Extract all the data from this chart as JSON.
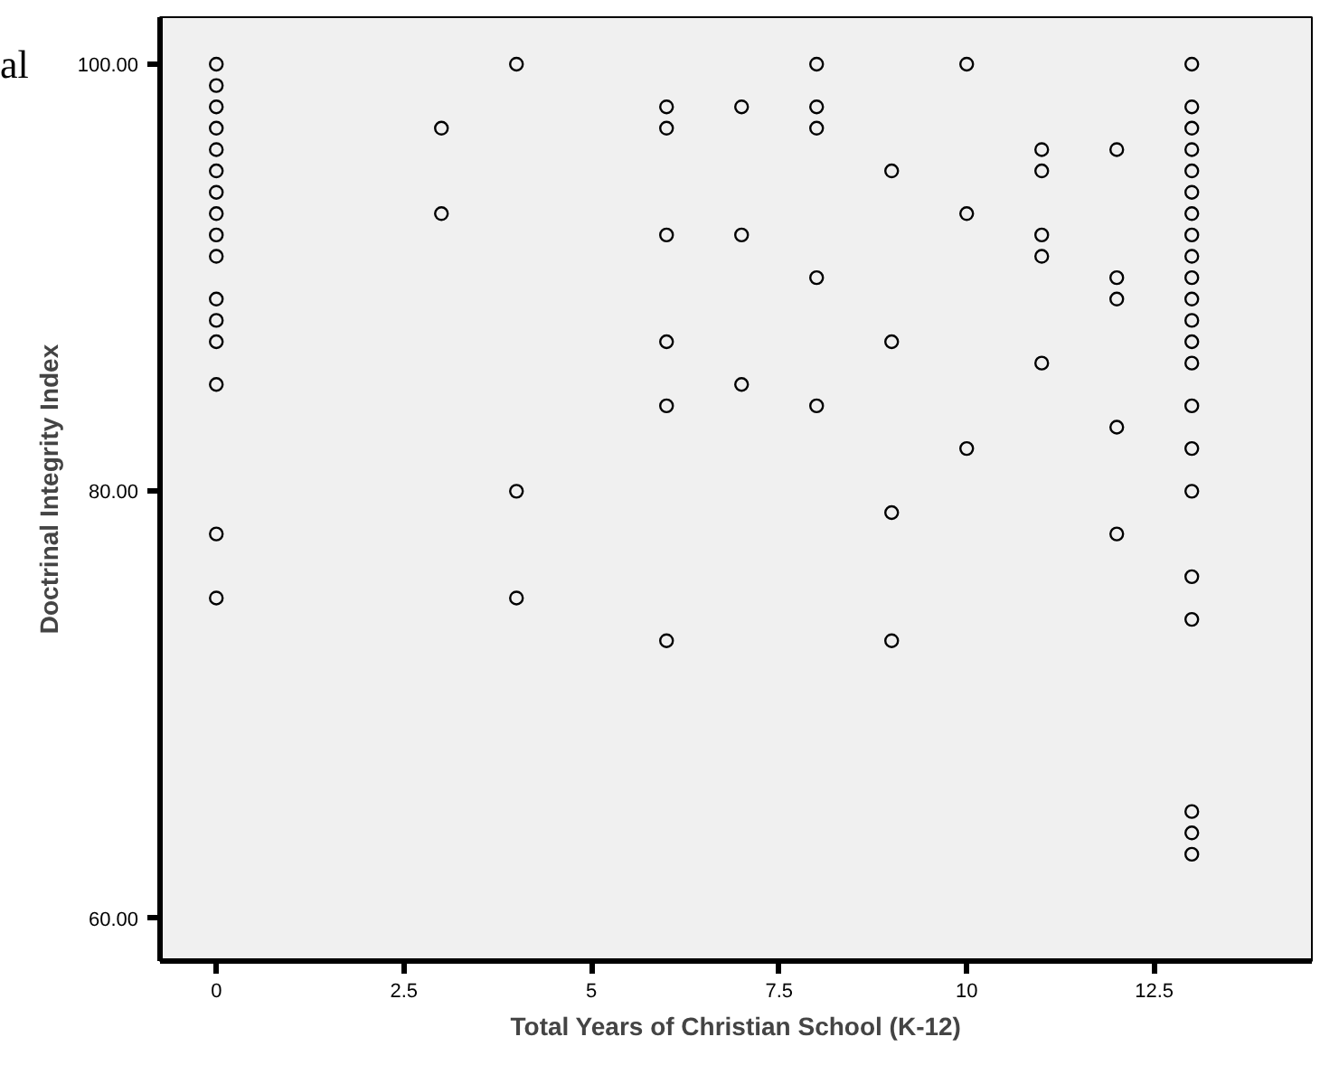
{
  "chart_data": {
    "type": "scatter",
    "xlabel": "Total Years of Christian School (K-12)",
    "ylabel": "Doctrinal Integrity Index",
    "annotations": [
      "al"
    ],
    "x": [
      0,
      0,
      0,
      0,
      0,
      0,
      0,
      0,
      0,
      0,
      0,
      0,
      0,
      0,
      0,
      0,
      3,
      3,
      4,
      4,
      4,
      6,
      6,
      6,
      6,
      6,
      6,
      7,
      7,
      7,
      8,
      8,
      8,
      8,
      8,
      9,
      9,
      9,
      9,
      10,
      10,
      10,
      11,
      11,
      11,
      11,
      11,
      12,
      12,
      12,
      12,
      12,
      13,
      13,
      13,
      13,
      13,
      13,
      13,
      13,
      13,
      13,
      13,
      13,
      13,
      13,
      13,
      13,
      13,
      13,
      13,
      13,
      13,
      13
    ],
    "values": [
      100,
      99,
      98,
      97,
      96,
      95,
      94,
      93,
      92,
      91,
      89,
      88,
      87,
      85,
      78,
      75,
      97,
      93,
      100,
      80,
      75,
      98,
      97,
      92,
      87,
      84,
      73,
      98,
      92,
      85,
      100,
      98,
      97,
      90,
      84,
      95,
      87,
      79,
      73,
      100,
      93,
      82,
      96,
      95,
      92,
      91,
      86,
      96,
      90,
      89,
      83,
      78,
      100,
      98,
      97,
      96,
      95,
      94,
      93,
      92,
      91,
      90,
      89,
      88,
      87,
      86,
      84,
      82,
      80,
      76,
      74,
      65,
      64,
      63
    ],
    "color": "#000000",
    "marker": "circle",
    "xlim": [
      -0.75,
      14.6
    ],
    "ylim": [
      58,
      102.2
    ],
    "xticks": [
      0,
      2.5,
      5,
      7.5,
      10,
      12.5
    ],
    "yticks": [
      {
        "value": 60,
        "label": "60.00"
      },
      {
        "value": 80,
        "label": "80.00"
      },
      {
        "value": 100,
        "label": "100.00"
      }
    ],
    "grid": false
  }
}
